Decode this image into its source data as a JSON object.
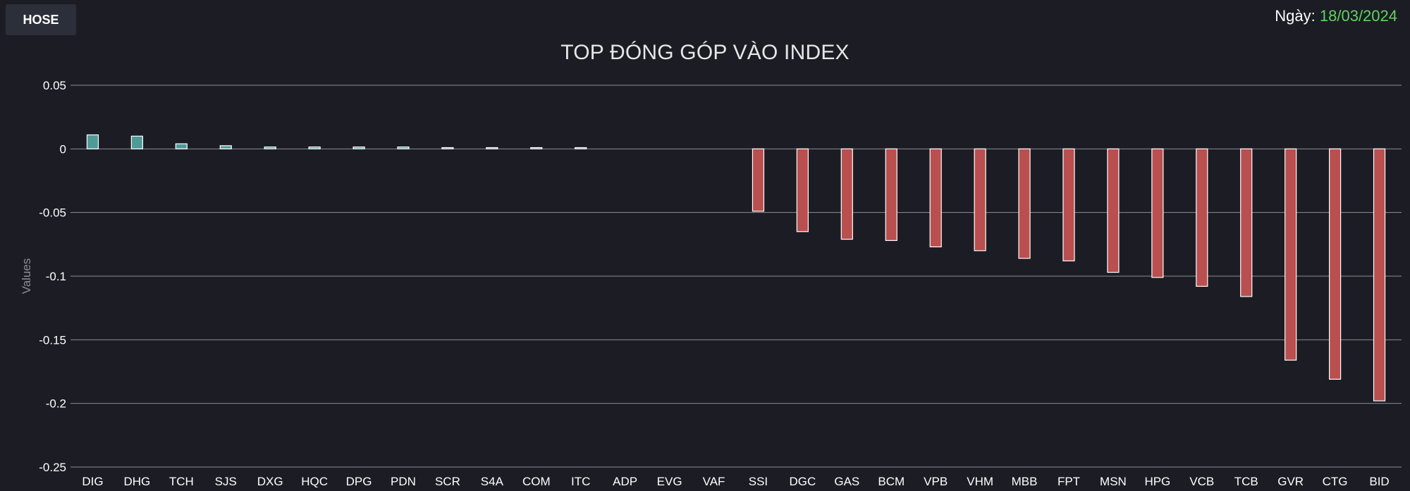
{
  "header": {
    "exchange_button": "HOSE",
    "date_label": "Ngày: ",
    "date_value": "18/03/2024"
  },
  "colors": {
    "positive_bar": "#4f9a97",
    "negative_bar": "#b94f4f",
    "bar_stroke": "#ffffff",
    "date_value": "#5fd35f",
    "background": "#1c1c24"
  },
  "chart_data": {
    "type": "bar",
    "title": "TOP ĐÓNG GÓP VÀO INDEX",
    "xlabel": "",
    "ylabel": "Values",
    "ylim": [
      -0.25,
      0.05
    ],
    "yticks": [
      0.05,
      0,
      -0.05,
      -0.1,
      -0.15,
      -0.2,
      -0.25
    ],
    "ytick_labels": [
      "0.05",
      "0",
      "-0.05",
      "-0.1",
      "-0.15",
      "-0.2",
      "-0.25"
    ],
    "grid": true,
    "categories": [
      "DIG",
      "DHG",
      "TCH",
      "SJS",
      "DXG",
      "HQC",
      "DPG",
      "PDN",
      "SCR",
      "S4A",
      "COM",
      "ITC",
      "ADP",
      "EVG",
      "VAF",
      "SSI",
      "DGC",
      "GAS",
      "BCM",
      "VPB",
      "VHM",
      "MBB",
      "FPT",
      "MSN",
      "HPG",
      "VCB",
      "TCB",
      "GVR",
      "CTG",
      "BID"
    ],
    "values": [
      0.011,
      0.01,
      0.004,
      0.0025,
      0.0015,
      0.0015,
      0.0015,
      0.0015,
      0.001,
      0.001,
      0.001,
      0.001,
      0,
      0,
      0,
      -0.049,
      -0.065,
      -0.071,
      -0.072,
      -0.077,
      -0.08,
      -0.086,
      -0.088,
      -0.097,
      -0.101,
      -0.108,
      -0.116,
      -0.166,
      -0.181,
      -0.198
    ]
  }
}
